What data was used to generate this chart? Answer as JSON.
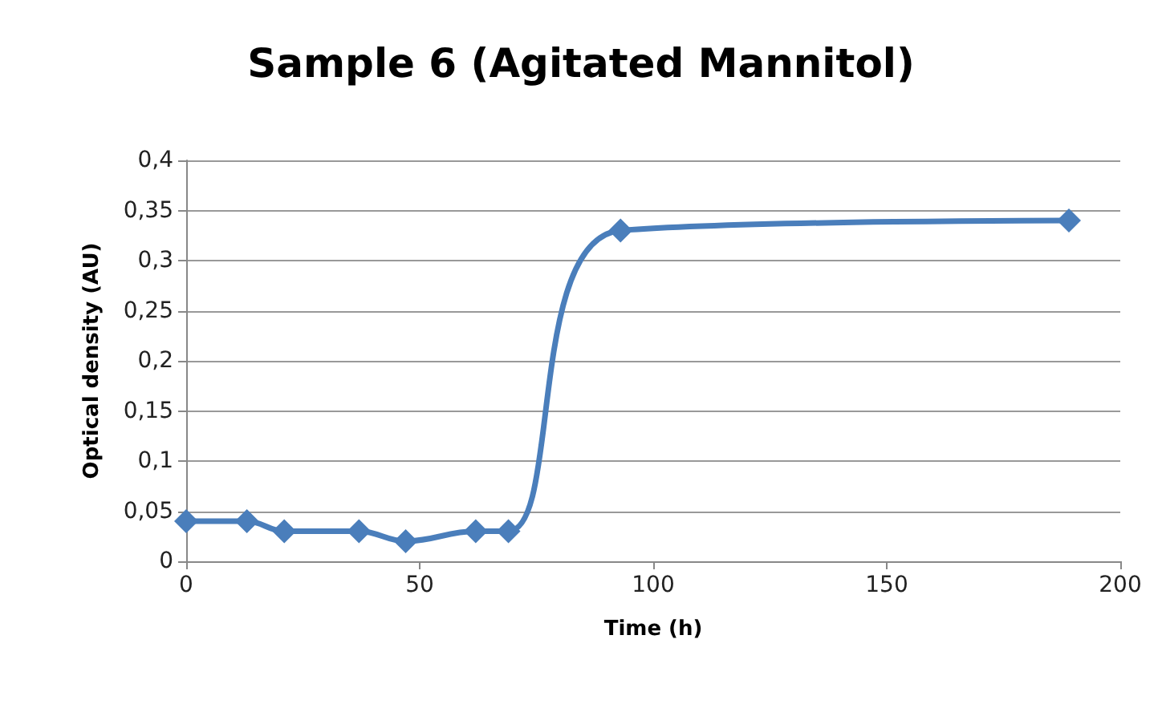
{
  "chart_data": {
    "type": "line",
    "title": "Sample 6 (Agitated Mannitol)",
    "xlabel": "Time (h)",
    "ylabel": "Optical density (AU)",
    "x": [
      0,
      13,
      21,
      37,
      47,
      62,
      69,
      93,
      189
    ],
    "series": [
      {
        "color": "#4a7ebb",
        "values": [
          0.04,
          0.04,
          0.03,
          0.03,
          0.02,
          0.03,
          0.03,
          0.33,
          0.34
        ]
      }
    ],
    "xlim": [
      0,
      200
    ],
    "xticks": [
      0,
      50,
      100,
      150,
      200
    ],
    "ylim": [
      0,
      0.4
    ],
    "yticks": [
      {
        "value": 0,
        "label": "0"
      },
      {
        "value": 0.05,
        "label": "0,05"
      },
      {
        "value": 0.1,
        "label": "0,1"
      },
      {
        "value": 0.15,
        "label": "0,15"
      },
      {
        "value": 0.2,
        "label": "0,2"
      },
      {
        "value": 0.25,
        "label": "0,25"
      },
      {
        "value": 0.3,
        "label": "0,3"
      },
      {
        "value": 0.35,
        "label": "0,35"
      },
      {
        "value": 0.4,
        "label": "0,4"
      }
    ],
    "grid": "y",
    "marker": "diamond",
    "line_style": "solid"
  }
}
